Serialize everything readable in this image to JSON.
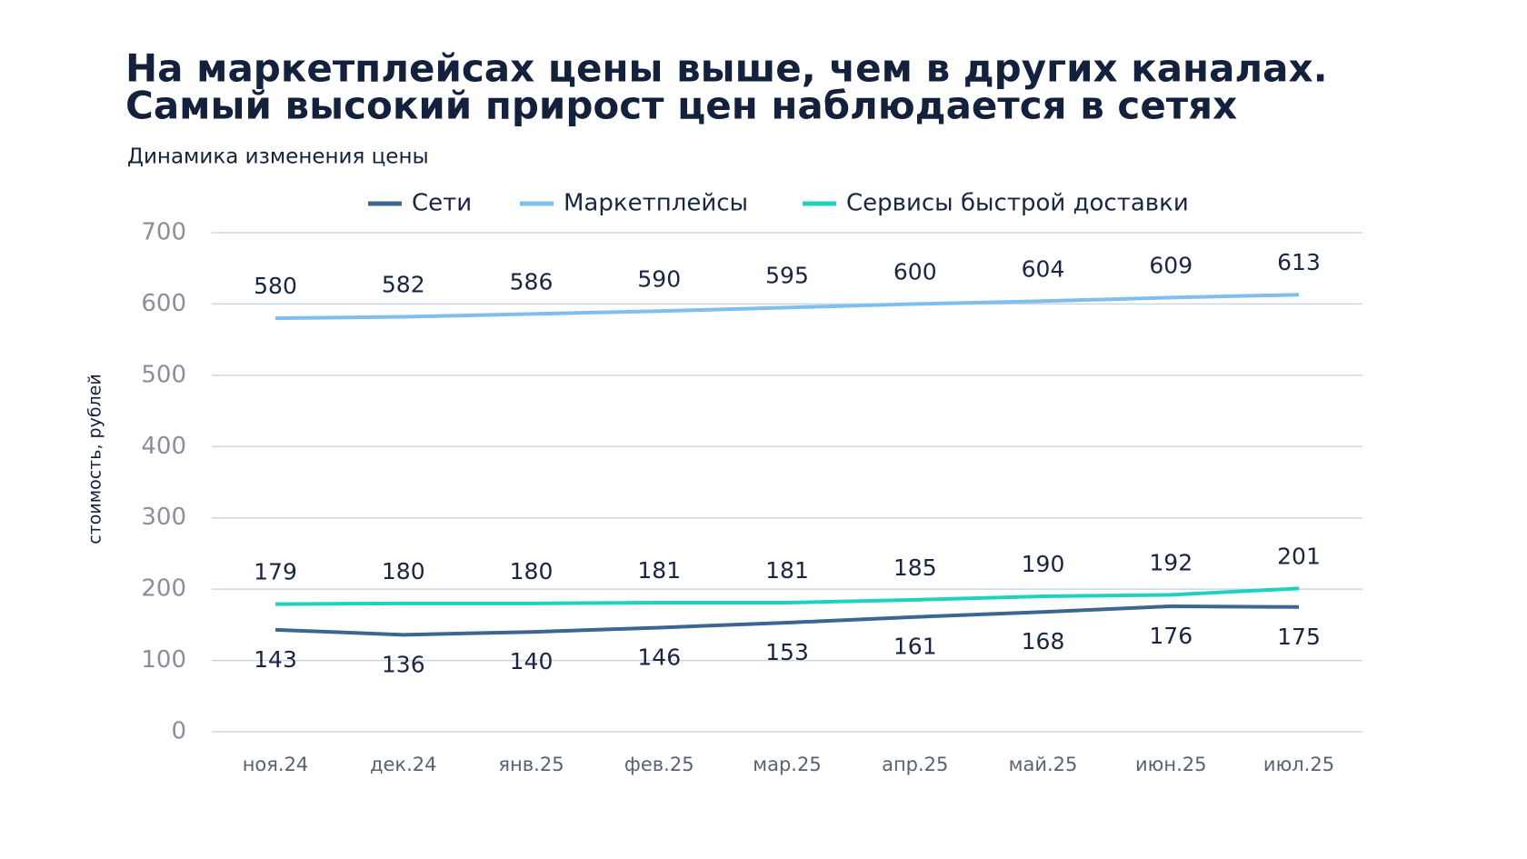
{
  "chart_data": {
    "type": "line",
    "title": [
      "На маркетплейсах цены выше, чем в других каналах.",
      "Самый высокий прирост цен наблюдается в сетях"
    ],
    "subtitle": "Динамика изменения цены",
    "y_label": "стоимость, рублей",
    "categories": [
      "ноя.24",
      "дек.24",
      "янв.25",
      "фев.25",
      "мар.25",
      "апр.25",
      "май.25",
      "июн.25",
      "июл.25"
    ],
    "series": [
      {
        "name": "Сети",
        "color": "#3d6591",
        "values": [
          143,
          136,
          140,
          146,
          153,
          161,
          168,
          176,
          175
        ],
        "label_position": "below"
      },
      {
        "name": "Маркетплейсы",
        "color": "#7fbfef",
        "values": [
          580,
          582,
          586,
          590,
          595,
          600,
          604,
          609,
          613
        ],
        "label_position": "above"
      },
      {
        "name": "Сервисы быстрой доставки",
        "color": "#1dd3c0",
        "values": [
          179,
          180,
          180,
          181,
          181,
          185,
          190,
          192,
          201
        ],
        "label_position": "above"
      }
    ],
    "ylim": [
      0,
      700
    ],
    "yticks": [
      0,
      100,
      200,
      300,
      400,
      500,
      600,
      700
    ],
    "grid": true,
    "legend": "top"
  }
}
